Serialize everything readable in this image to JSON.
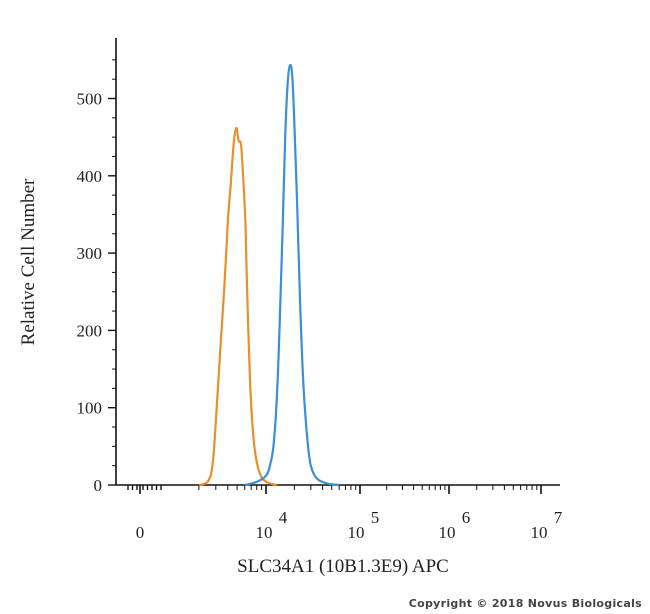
{
  "chart_data": {
    "type": "line",
    "title": "",
    "xlabel": "SLC34A1 (10B1.3E9) APC",
    "ylabel": "Relative Cell Number",
    "x_scale": "biexponential",
    "x_tick_labels": [
      {
        "base": "0",
        "exp": ""
      },
      {
        "base": "10",
        "exp": "4"
      },
      {
        "base": "10",
        "exp": "5"
      },
      {
        "base": "10",
        "exp": "6"
      },
      {
        "base": "10",
        "exp": "7"
      }
    ],
    "y_ticks": [
      "0",
      "100",
      "200",
      "300",
      "400",
      "500"
    ],
    "ylim": [
      0,
      560
    ],
    "grid": false,
    "legend": "none",
    "series": [
      {
        "color": "#e8902a",
        "points": [
          [
            2000,
            0
          ],
          [
            2500,
            5
          ],
          [
            2800,
            30
          ],
          [
            3100,
            110
          ],
          [
            3400,
            190
          ],
          [
            3700,
            260
          ],
          [
            4000,
            340
          ],
          [
            4300,
            390
          ],
          [
            4600,
            440
          ],
          [
            4900,
            462
          ],
          [
            5200,
            445
          ],
          [
            5500,
            440
          ],
          [
            5800,
            395
          ],
          [
            6100,
            340
          ],
          [
            6400,
            240
          ],
          [
            6800,
            140
          ],
          [
            7300,
            70
          ],
          [
            8000,
            30
          ],
          [
            9000,
            10
          ],
          [
            10500,
            3
          ],
          [
            13000,
            0
          ]
        ]
      },
      {
        "color": "#3a8fd6",
        "points": [
          [
            6000,
            0
          ],
          [
            8000,
            4
          ],
          [
            10000,
            12
          ],
          [
            11000,
            25
          ],
          [
            12000,
            50
          ],
          [
            13000,
            110
          ],
          [
            14000,
            210
          ],
          [
            15000,
            330
          ],
          [
            16000,
            450
          ],
          [
            17000,
            520
          ],
          [
            18000,
            543
          ],
          [
            19000,
            530
          ],
          [
            20000,
            470
          ],
          [
            21500,
            360
          ],
          [
            23000,
            240
          ],
          [
            25000,
            130
          ],
          [
            27500,
            60
          ],
          [
            30000,
            25
          ],
          [
            35000,
            8
          ],
          [
            45000,
            2
          ],
          [
            60000,
            0
          ]
        ]
      }
    ]
  },
  "copyright": "Copyright © 2018 Novus Biologicals"
}
